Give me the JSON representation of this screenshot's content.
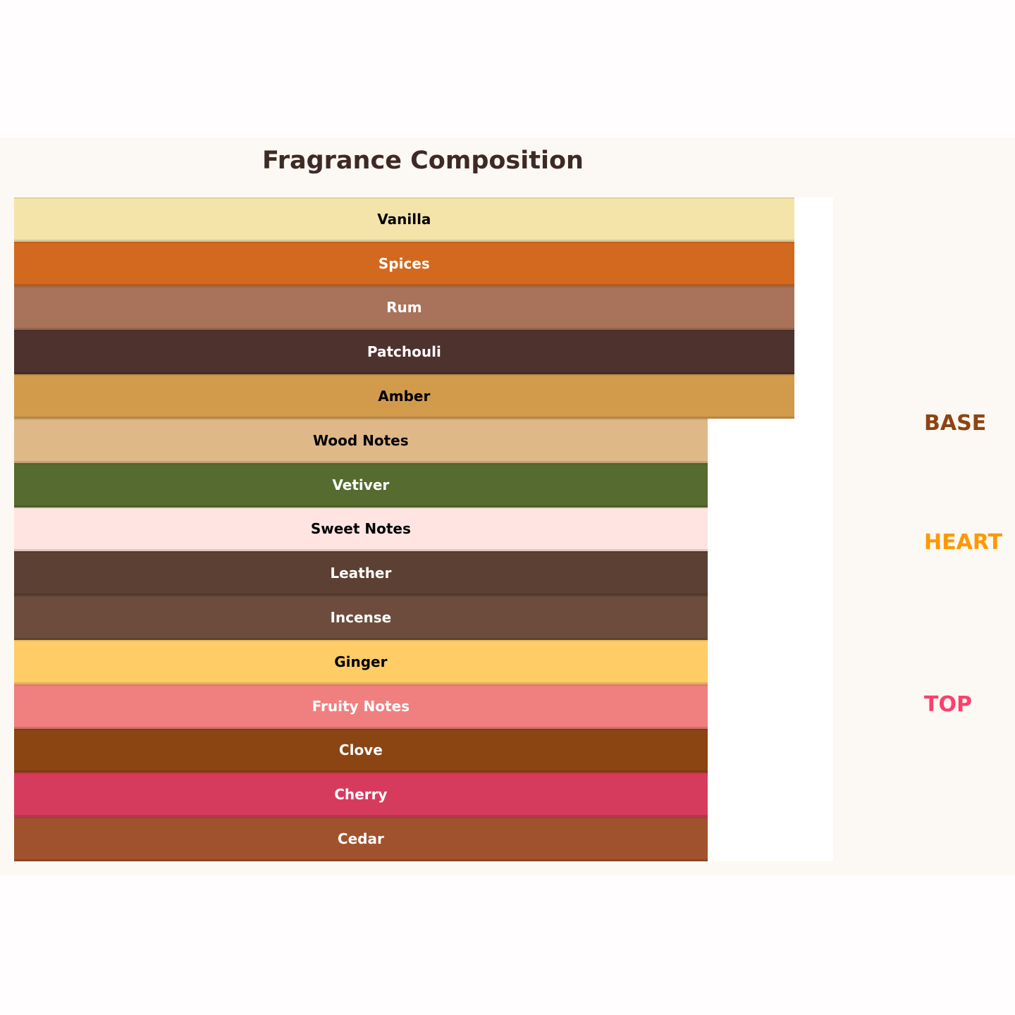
{
  "chart_data": {
    "type": "bar",
    "orientation": "horizontal",
    "title": "Fragrance Composition",
    "categories": [
      "Vanilla",
      "Spices",
      "Rum",
      "Patchouli",
      "Amber",
      "Wood Notes",
      "Vetiver",
      "Sweet Notes",
      "Leather",
      "Incense",
      "Ginger",
      "Fruity Notes",
      "Clove",
      "Cherry",
      "Cedar"
    ],
    "values": [
      9,
      9,
      9,
      9,
      9,
      8,
      8,
      8,
      8,
      8,
      8,
      8,
      8,
      8,
      8
    ],
    "colors": [
      "#f4e4aa",
      "#d2691e",
      "#a8735a",
      "#4e322d",
      "#d29b4c",
      "#deb887",
      "#556b2f",
      "#ffe4e1",
      "#5c4033",
      "#6d4c3d",
      "#ffcc66",
      "#f07f7f",
      "#8b4513",
      "#d63b5e",
      "#a0522d"
    ],
    "text_colors": [
      "#000000",
      "#ffffff",
      "#ffffff",
      "#ffffff",
      "#000000",
      "#000000",
      "#ffffff",
      "#000000",
      "#ffffff",
      "#ffffff",
      "#000000",
      "#ffffff",
      "#ffffff",
      "#ffffff",
      "#ffffff"
    ],
    "xlim": [
      0,
      9.45
    ],
    "axes_visible": false,
    "grid": false,
    "annotations": [
      {
        "text": "BASE",
        "color": "#8b4513"
      },
      {
        "text": "HEART",
        "color": "#ff9800"
      },
      {
        "text": "TOP",
        "color": "#ff3e6c"
      }
    ]
  }
}
